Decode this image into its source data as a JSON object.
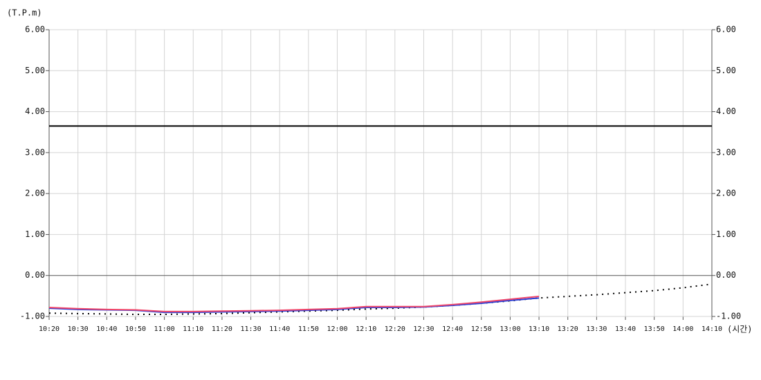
{
  "chart_data": {
    "type": "line",
    "y_label": "(T.P.m)",
    "x_label": "(시간)",
    "categories": [
      "10:20",
      "10:30",
      "10:40",
      "10:50",
      "11:00",
      "11:10",
      "11:20",
      "11:30",
      "11:40",
      "11:50",
      "12:00",
      "12:10",
      "12:20",
      "12:30",
      "12:40",
      "12:50",
      "13:00",
      "13:10",
      "13:20",
      "13:30",
      "13:40",
      "13:50",
      "14:00",
      "14:10"
    ],
    "series": [
      {
        "color": "#000000",
        "style": "solid",
        "values": [
          3.65,
          3.65,
          3.65,
          3.65,
          3.65,
          3.65,
          3.65,
          3.65,
          3.65,
          3.65,
          3.65,
          3.65,
          3.65,
          3.65,
          3.65,
          3.65,
          3.65,
          3.65,
          3.65,
          3.65,
          3.65,
          3.65,
          3.65,
          3.65
        ]
      },
      {
        "color": "#000000",
        "style": "dotted",
        "values": [
          -0.92,
          -0.93,
          -0.94,
          -0.95,
          -0.95,
          -0.94,
          -0.93,
          -0.91,
          -0.89,
          -0.87,
          -0.85,
          -0.82,
          -0.8,
          -0.77,
          -0.73,
          -0.68,
          -0.62,
          -0.55,
          -0.51,
          -0.47,
          -0.42,
          -0.37,
          -0.3,
          -0.21
        ]
      },
      {
        "color": "#2b3fd6",
        "style": "solid",
        "values": [
          -0.8,
          -0.83,
          -0.84,
          -0.85,
          -0.9,
          -0.9,
          -0.89,
          -0.88,
          -0.87,
          -0.85,
          -0.83,
          -0.78,
          -0.78,
          -0.77,
          -0.73,
          -0.68,
          -0.61,
          -0.55,
          null,
          null,
          null,
          null,
          null,
          null
        ]
      },
      {
        "color": "#f0476a",
        "style": "solid",
        "values": [
          -0.78,
          -0.81,
          -0.83,
          -0.84,
          -0.88,
          -0.88,
          -0.87,
          -0.86,
          -0.85,
          -0.83,
          -0.81,
          -0.76,
          -0.76,
          -0.76,
          -0.71,
          -0.65,
          -0.58,
          -0.51,
          null,
          null,
          null,
          null,
          null,
          null
        ]
      }
    ],
    "ylim": [
      -1,
      6
    ],
    "yticks": [
      {
        "value": -1,
        "label": "-1.00"
      },
      {
        "value": 0,
        "label": "0.00"
      },
      {
        "value": 1,
        "label": "1.00"
      },
      {
        "value": 2,
        "label": "2.00"
      },
      {
        "value": 3,
        "label": "3.00"
      },
      {
        "value": 4,
        "label": "4.00"
      },
      {
        "value": 5,
        "label": "5.00"
      },
      {
        "value": 6,
        "label": "6.00"
      }
    ],
    "y2lim": [
      -1,
      6
    ],
    "y2ticks": [
      {
        "value": -1,
        "label": "-1.00"
      },
      {
        "value": 0,
        "label": "0.00"
      },
      {
        "value": 1,
        "label": "1.00"
      },
      {
        "value": 2,
        "label": "2.00"
      },
      {
        "value": 3,
        "label": "3.00"
      },
      {
        "value": 4,
        "label": "4.00"
      },
      {
        "value": 5,
        "label": "5.00"
      },
      {
        "value": 6,
        "label": "6.00"
      }
    ],
    "grid": true
  }
}
